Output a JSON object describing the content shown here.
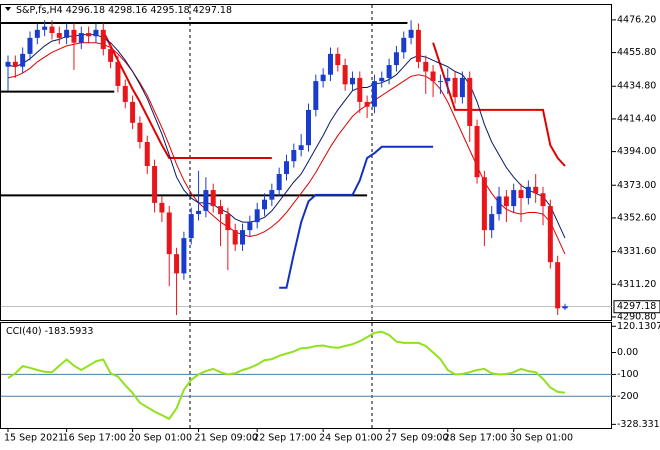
{
  "chart_data": {
    "type": "candlestick",
    "symbol": "S&P,fs,H4",
    "ohlc_current": [
      4296.18,
      4298.16,
      4295.18,
      4297.18
    ],
    "categories": [
      "15 Sep 2021",
      null,
      null,
      null,
      null,
      null,
      null,
      null,
      "16 Sep 17:00",
      null,
      null,
      null,
      null,
      null,
      null,
      null,
      null,
      "20 Sep 01:00",
      null,
      null,
      null,
      null,
      null,
      null,
      null,
      null,
      "21 Sep 09:00",
      null,
      null,
      null,
      null,
      null,
      null,
      null,
      "22 Sep 17:00",
      null,
      null,
      null,
      null,
      null,
      null,
      null,
      null,
      "24 Sep 01:00",
      null,
      null,
      null,
      null,
      null,
      null,
      null,
      null,
      "27 Sep 09:00",
      null,
      null,
      null,
      null,
      null,
      null,
      null,
      "28 Sep 17:00",
      null,
      null,
      null,
      null,
      null,
      null,
      null,
      null,
      "30 Sep 01:00",
      null,
      null,
      null,
      null,
      null,
      null,
      null
    ],
    "open": [
      4447,
      4450,
      4447,
      4455,
      4465,
      4470,
      4472,
      4468,
      4465,
      4470,
      4462,
      4468,
      4466,
      4470,
      4458,
      4450,
      4435,
      4425,
      4412,
      4400,
      4385,
      4362,
      4356,
      4330,
      4318,
      4340,
      4355,
      4357,
      4370,
      4360,
      4355,
      4345,
      4336,
      4345,
      4350,
      4358,
      4364,
      4370,
      4380,
      4388,
      4395,
      4398,
      4420,
      4438,
      4442,
      4455,
      4448,
      4436,
      4440,
      4425,
      4422,
      4438,
      4440,
      4448,
      4456,
      4465,
      4470,
      4450,
      4444,
      4438,
      4438,
      4440,
      4428,
      4440,
      4410,
      4378,
      4345,
      4355,
      4366,
      4360,
      4370,
      4365,
      4372,
      4368,
      4360,
      4325,
      4296.18
    ],
    "high": [
      4454,
      4454,
      4459,
      4469,
      4474,
      4476,
      4476,
      4472,
      4474,
      4474,
      4472,
      4472,
      4474,
      4474,
      4462,
      4454,
      4439,
      4429,
      4416,
      4404,
      4389,
      4366,
      4360,
      4334,
      4344,
      4359,
      4382,
      4378,
      4374,
      4364,
      4359,
      4349,
      4349,
      4354,
      4362,
      4368,
      4374,
      4384,
      4392,
      4399,
      4405,
      4424,
      4442,
      4446,
      4459,
      4459,
      4452,
      4444,
      4444,
      4429,
      4442,
      4444,
      4452,
      4460,
      4469,
      4476,
      4474,
      4454,
      4448,
      4442,
      4446,
      4444,
      4444,
      4444,
      4414,
      4382,
      4360,
      4372,
      4370,
      4374,
      4374,
      4376,
      4380,
      4372,
      4364,
      4329,
      4298.16
    ],
    "low": [
      4432,
      4440,
      4443,
      4451,
      4461,
      4466,
      4464,
      4461,
      4461,
      4445,
      4458,
      4462,
      4462,
      4454,
      4446,
      4431,
      4421,
      4408,
      4396,
      4380,
      4356,
      4350,
      4310,
      4292,
      4314,
      4336,
      4351,
      4353,
      4356,
      4335,
      4320,
      4332,
      4332,
      4341,
      4346,
      4354,
      4360,
      4366,
      4376,
      4384,
      4391,
      4394,
      4416,
      4434,
      4438,
      4444,
      4432,
      4432,
      4418,
      4415,
      4418,
      4434,
      4436,
      4444,
      4452,
      4461,
      4446,
      4430,
      4428,
      4430,
      4430,
      4424,
      4424,
      4400,
      4374,
      4335,
      4340,
      4351,
      4350,
      4356,
      4350,
      4361,
      4362,
      4348,
      4321,
      4292,
      4295.18
    ],
    "close": [
      4450,
      4447,
      4455,
      4465,
      4470,
      4472,
      4468,
      4465,
      4470,
      4462,
      4468,
      4466,
      4470,
      4458,
      4450,
      4435,
      4425,
      4412,
      4400,
      4385,
      4362,
      4356,
      4330,
      4318,
      4340,
      4355,
      4357,
      4370,
      4360,
      4355,
      4345,
      4336,
      4345,
      4350,
      4358,
      4364,
      4370,
      4380,
      4388,
      4395,
      4398,
      4420,
      4438,
      4442,
      4455,
      4448,
      4436,
      4440,
      4425,
      4422,
      4438,
      4440,
      4448,
      4456,
      4465,
      4470,
      4450,
      4444,
      4438,
      4438,
      4440,
      4428,
      4440,
      4410,
      4378,
      4345,
      4355,
      4366,
      4360,
      4370,
      4365,
      4372,
      4368,
      4360,
      4325,
      4296.18,
      4297.18
    ],
    "up_color": "#1a3ccc",
    "down_color": "#e8161b",
    "ylim": [
      4288.9,
      4485.5
    ],
    "yticks": [
      {
        "value": 4476.2,
        "label": "4476.20"
      },
      {
        "value": 4455.8,
        "label": "4455.80"
      },
      {
        "value": 4434.8,
        "label": "4434.80"
      },
      {
        "value": 4414.4,
        "label": "4414.40"
      },
      {
        "value": 4394,
        "label": "4394.00"
      },
      {
        "value": 4373,
        "label": "4373.00"
      },
      {
        "value": 4352.6,
        "label": "4352.60"
      },
      {
        "value": 4331.6,
        "label": "4331.60"
      },
      {
        "value": 4311.2,
        "label": "4311.20"
      },
      {
        "value": 4290.8,
        "label": "4290.80"
      }
    ],
    "overlays": [
      {
        "color": "#e00000",
        "width": 2,
        "values": [
          null,
          null,
          null,
          null,
          null,
          null,
          null,
          null,
          null,
          null,
          null,
          null,
          null,
          4469,
          4460,
          4451,
          4442,
          4433,
          4425,
          4416,
          4407,
          4398,
          4390,
          4390,
          4390,
          4390,
          4390,
          4390,
          4390,
          4390,
          4390,
          4390,
          4390,
          4390,
          4390,
          4390,
          4390,
          null,
          null,
          null,
          null,
          null,
          null,
          null,
          null,
          null,
          null,
          null,
          null,
          null,
          null,
          null,
          null,
          null,
          null,
          null,
          null,
          null,
          4462,
          4448,
          4434,
          4420,
          4420,
          4420,
          4420,
          4420,
          4420,
          4420,
          4420,
          4420,
          4420,
          4420,
          4420,
          4420,
          4398,
          4390,
          4385
        ]
      },
      {
        "color": "#1030c0",
        "width": 2,
        "values": [
          null,
          null,
          null,
          null,
          null,
          null,
          null,
          null,
          null,
          null,
          null,
          null,
          null,
          null,
          null,
          null,
          null,
          null,
          null,
          null,
          null,
          null,
          null,
          null,
          null,
          null,
          null,
          null,
          null,
          null,
          null,
          null,
          null,
          null,
          null,
          null,
          null,
          4309,
          4309,
          4330,
          4350,
          4363,
          4367,
          4367,
          4367,
          4367,
          4367,
          4367,
          4376,
          4390,
          4393,
          4397,
          4397,
          4397,
          4397,
          4397,
          4397,
          4397,
          4397,
          null,
          null,
          null,
          null,
          null,
          null,
          null,
          null,
          null,
          null,
          null,
          null,
          null,
          null,
          null,
          null,
          null,
          null
        ]
      },
      {
        "color": "#e00000",
        "width": 1,
        "values": [
          4440,
          4441,
          4443,
          4446,
          4450,
          4453,
          4456,
          4458,
          4460,
          4461,
          4462,
          4462,
          4462,
          4461,
          4459,
          4455,
          4450,
          4444,
          4437,
          4429,
          4419,
          4409,
          4398,
          4386,
          4376,
          4368,
          4362,
          4358,
          4354,
          4350,
          4347,
          4344,
          4342,
          4341,
          4342,
          4344,
          4347,
          4351,
          4356,
          4362,
          4368,
          4374,
          4381,
          4389,
          4397,
          4404,
          4410,
          4416,
          4420,
          4423,
          4426,
          4429,
          4432,
          4435,
          4438,
          4441,
          4442,
          4441,
          4438,
          4433,
          4425,
          4415,
          4405,
          4395,
          4385,
          4375,
          4368,
          4362,
          4358,
          4356,
          4355,
          4356,
          4356,
          4355,
          4350,
          4340,
          4330
        ]
      },
      {
        "color": "#0a1a66",
        "width": 1,
        "values": [
          4448,
          4447,
          4449,
          4452,
          4456,
          4460,
          4463,
          4464,
          4466,
          4466,
          4467,
          4467,
          4467,
          4465,
          4462,
          4457,
          4451,
          4444,
          4436,
          4427,
          4416,
          4405,
          4392,
          4378,
          4370,
          4365,
          4362,
          4362,
          4361,
          4358,
          4356,
          4352,
          4350,
          4350,
          4351,
          4353,
          4357,
          4363,
          4369,
          4375,
          4380,
          4388,
          4396,
          4404,
          4413,
          4420,
          4426,
          4432,
          4434,
          4434,
          4436,
          4437,
          4439,
          4442,
          4447,
          4452,
          4454,
          4453,
          4451,
          4449,
          4447,
          4444,
          4442,
          4436,
          4425,
          4411,
          4400,
          4392,
          4384,
          4378,
          4373,
          4370,
          4368,
          4366,
          4360,
          4350,
          4340
        ]
      }
    ],
    "hlines": [
      {
        "value": 4474.3,
        "to": 54.5
      },
      {
        "value": 4431.4,
        "to": 14.5
      },
      {
        "value": 4366.7,
        "to": 49
      }
    ],
    "cci": {
      "type": "line",
      "name": "CCI(40)",
      "current": -183.5933,
      "color": "#8fe31c",
      "values": [
        -117,
        -95,
        -62,
        -70,
        -80,
        -88,
        -90,
        -60,
        -32,
        -60,
        -80,
        -60,
        -40,
        -32,
        -95,
        -110,
        -150,
        -185,
        -230,
        -250,
        -270,
        -286,
        -303,
        -255,
        -170,
        -125,
        -100,
        -85,
        -75,
        -90,
        -100,
        -95,
        -80,
        -70,
        -55,
        -35,
        -30,
        -15,
        -5,
        5,
        20,
        22,
        30,
        32,
        25,
        22,
        30,
        38,
        52,
        70,
        90,
        95,
        80,
        50,
        44,
        44,
        44,
        30,
        0,
        -30,
        -80,
        -100,
        -98,
        -90,
        -80,
        -75,
        -95,
        -100,
        -98,
        -90,
        -75,
        -85,
        -90,
        -120,
        -160,
        -180,
        -183.5933
      ],
      "ylim": [
        -345,
        135
      ],
      "yticks": [
        120.1307,
        {
          "value": 0,
          "label": "0.00"
        },
        -100,
        -200,
        -328.3318
      ],
      "levels": [
        -100,
        -200
      ],
      "level_color": "#4a7fa8"
    }
  }
}
